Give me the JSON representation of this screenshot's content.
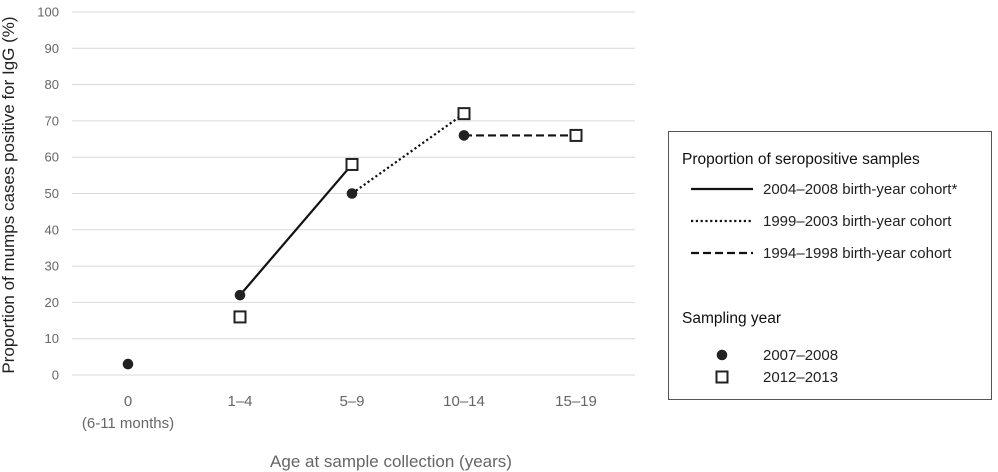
{
  "chart_data": {
    "type": "line",
    "ylabel": "Proportion of mumps cases positive for IgG (%)",
    "xlabel": "Age at sample collection (years)",
    "ylim": [
      0,
      100
    ],
    "yticks": [
      0,
      10,
      20,
      30,
      40,
      50,
      60,
      70,
      80,
      90,
      100
    ],
    "grid": true,
    "categories": [
      {
        "line1": "0",
        "line2": "(6-11 months)"
      },
      {
        "line1": "1–4",
        "line2": ""
      },
      {
        "line1": "5–9",
        "line2": ""
      },
      {
        "line1": "10–14",
        "line2": ""
      },
      {
        "line1": "15–19",
        "line2": ""
      }
    ],
    "cohorts": [
      {
        "name": "2004–2008 birth-year cohort*",
        "style": "solid",
        "from": {
          "x": 1,
          "y": 22
        },
        "to": {
          "x": 2,
          "y": 58
        }
      },
      {
        "name": "1999–2003 birth-year cohort",
        "style": "dotted",
        "from": {
          "x": 2,
          "y": 50
        },
        "to": {
          "x": 3,
          "y": 72
        }
      },
      {
        "name": "1994–1998 birth-year cohort",
        "style": "dashed",
        "from": {
          "x": 3,
          "y": 66
        },
        "to": {
          "x": 4,
          "y": 66
        }
      }
    ],
    "series": [
      {
        "name": "2007–2008",
        "marker": "filled-circle",
        "points": [
          {
            "x": 0,
            "y": 3
          },
          {
            "x": 1,
            "y": 22
          },
          {
            "x": 2,
            "y": 50
          },
          {
            "x": 3,
            "y": 66
          }
        ]
      },
      {
        "name": "2012–2013",
        "marker": "open-square",
        "points": [
          {
            "x": 1,
            "y": 16
          },
          {
            "x": 2,
            "y": 58
          },
          {
            "x": 3,
            "y": 72
          },
          {
            "x": 4,
            "y": 66
          }
        ]
      }
    ],
    "legend": {
      "position": "right",
      "lines_title": "Proportion of seropositive samples",
      "markers_title": "Sampling year"
    },
    "colors": {
      "marker": "#222222",
      "line": "#111111",
      "grid": "#d9d9d9",
      "tick": "#666666"
    }
  }
}
